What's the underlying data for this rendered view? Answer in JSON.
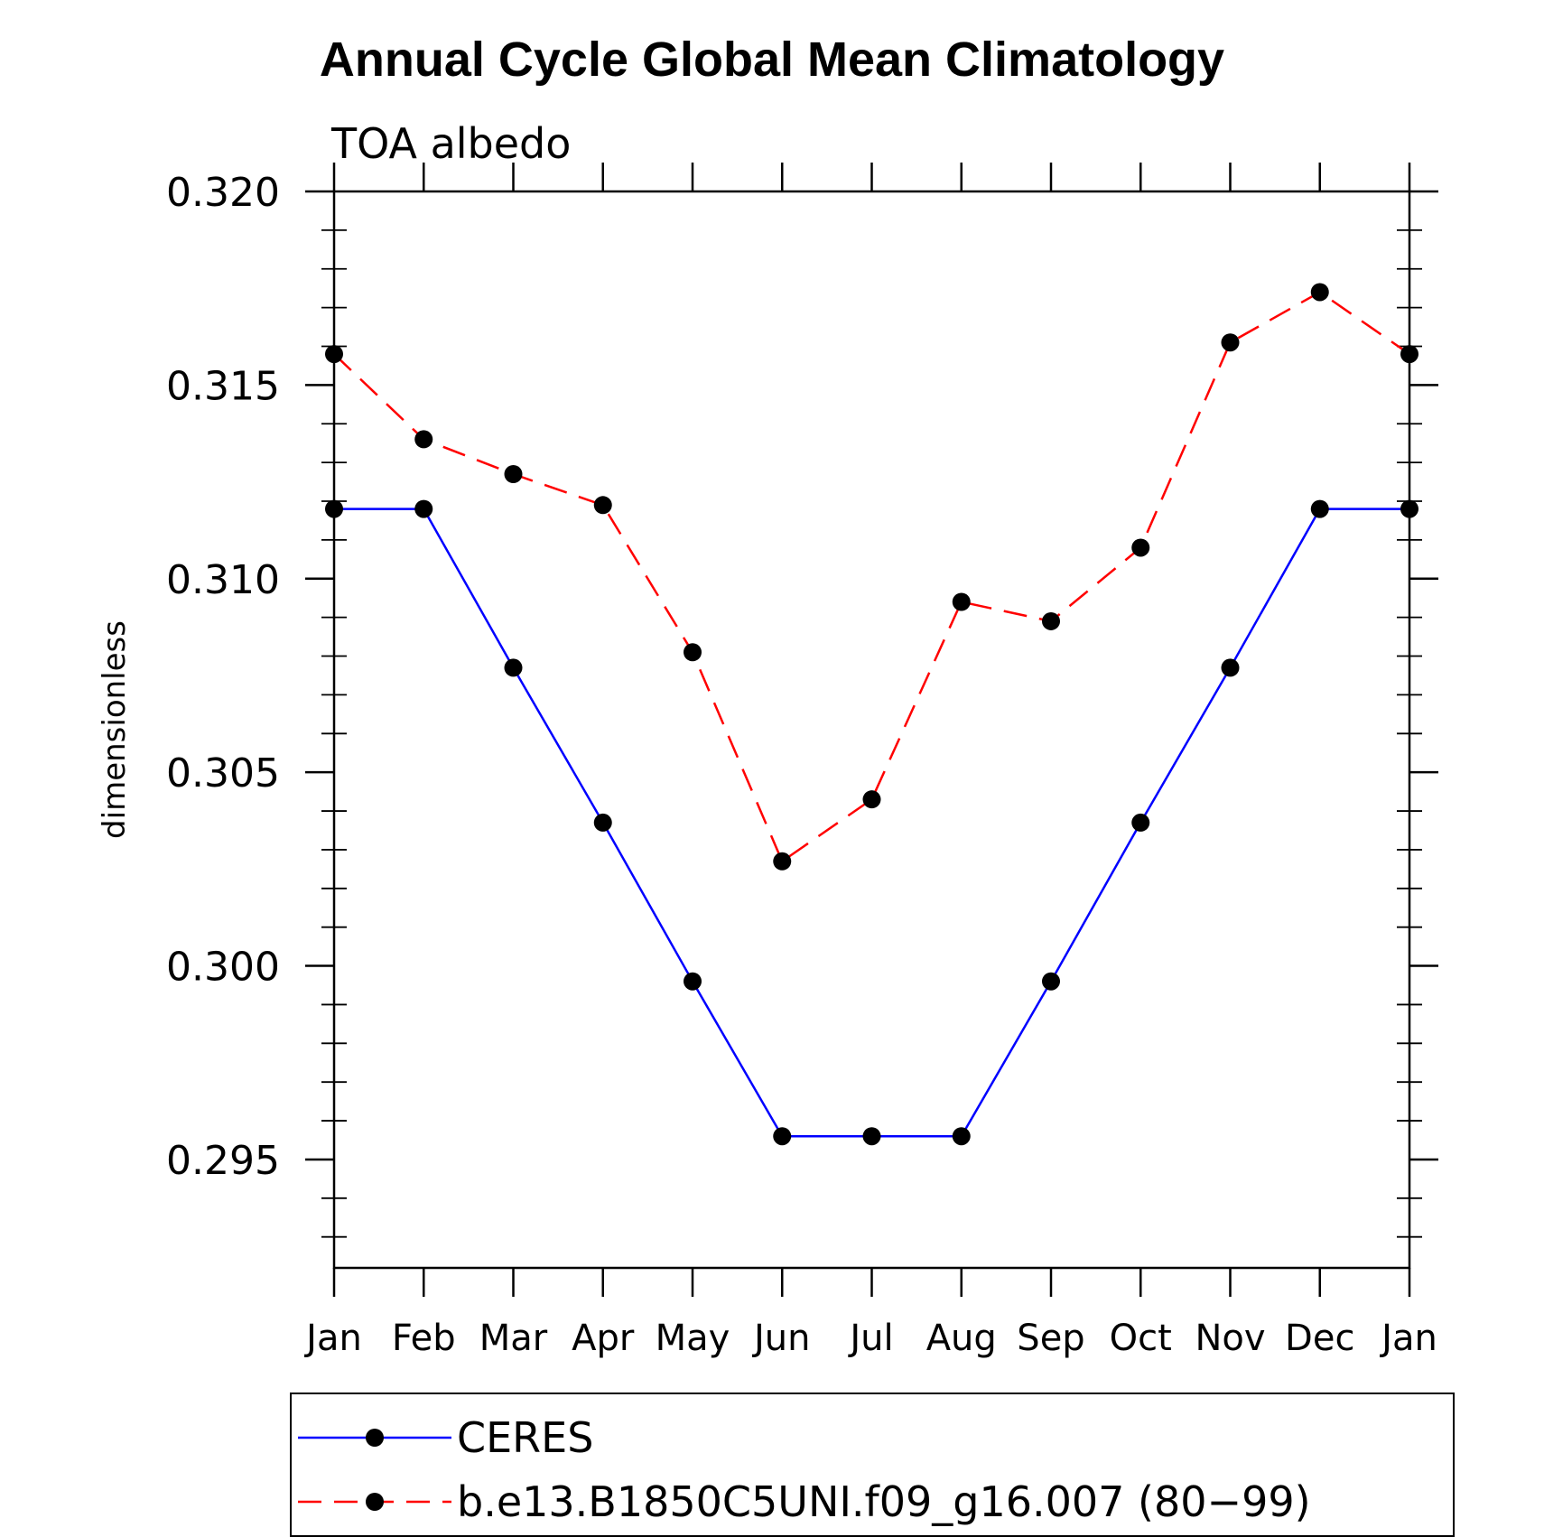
{
  "chart_data": {
    "type": "line",
    "title": "Annual Cycle Global Mean Climatology",
    "subtitle": "TOA albedo",
    "ylabel": "dimensionless",
    "xlabel": "",
    "categories": [
      "Jan",
      "Feb",
      "Mar",
      "Apr",
      "May",
      "Jun",
      "Jul",
      "Aug",
      "Sep",
      "Oct",
      "Nov",
      "Dec",
      "Jan"
    ],
    "ylim": [
      0.2922,
      0.32
    ],
    "yticks": [
      "0.320",
      "0.315",
      "0.310",
      "0.305",
      "0.300",
      "0.295"
    ],
    "ytick_values": [
      0.32,
      0.315,
      0.31,
      0.305,
      0.3,
      0.295
    ],
    "grid": false,
    "legend_position": "bottom",
    "series": [
      {
        "name": "CERES",
        "color": "#0000ff",
        "dash": "solid",
        "values": [
          0.3118,
          0.3118,
          0.3077,
          0.3037,
          0.2996,
          0.2956,
          0.2956,
          0.2956,
          0.2996,
          0.3037,
          0.3077,
          0.3118,
          0.3118
        ]
      },
      {
        "name": "b.e13.B1850C5UNI.f09_g16.007 (80−99)",
        "color": "#ff0000",
        "dash": "dashed",
        "values": [
          0.3158,
          0.3136,
          0.3127,
          0.3119,
          0.3081,
          0.3027,
          0.3043,
          0.3094,
          0.3089,
          0.3108,
          0.3161,
          0.3174,
          0.3158
        ]
      }
    ],
    "marker": "filled-circle",
    "marker_color": "#000000"
  }
}
